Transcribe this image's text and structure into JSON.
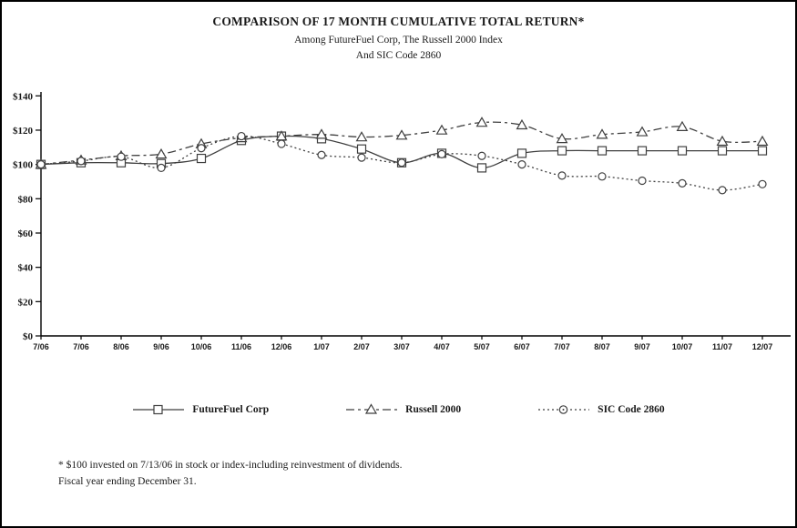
{
  "page": {
    "title": "COMPARISON OF 17 MONTH CUMULATIVE TOTAL RETURN*",
    "subtitle_line1": "Among FutureFuel Corp, The Russell 2000 Index",
    "subtitle_line2": "And SIC Code 2860",
    "footnote_line1": "* $100 invested on 7/13/06 in stock or index-including reinvestment of dividends.",
    "footnote_line2": "Fiscal year ending December 31."
  },
  "chart_data": {
    "type": "line",
    "title": "COMPARISON OF 17 MONTH CUMULATIVE TOTAL RETURN*",
    "subtitle": "Among FutureFuel Corp, The Russell 2000 Index And SIC Code 2860",
    "categories": [
      "7/06",
      "7/06",
      "8/06",
      "9/06",
      "10/06",
      "11/06",
      "12/06",
      "1/07",
      "2/07",
      "3/07",
      "4/07",
      "5/07",
      "6/07",
      "7/07",
      "8/07",
      "9/07",
      "10/07",
      "11/07",
      "12/07"
    ],
    "series": [
      {
        "name": "FutureFuel Corp",
        "marker": "square",
        "line_style": "solid",
        "values": [
          100,
          101,
          101,
          100.5,
          103.5,
          114,
          116.5,
          115,
          109,
          101,
          106.5,
          98,
          106.5,
          108,
          108,
          108,
          108,
          108,
          108
        ]
      },
      {
        "name": "Russell 2000",
        "marker": "triangle",
        "line_style": "dashed",
        "values": [
          100,
          102.5,
          105,
          106,
          112,
          115.5,
          116.5,
          117.5,
          116,
          117,
          120,
          124.5,
          123,
          115,
          117.5,
          119,
          122,
          113.5,
          113.5
        ]
      },
      {
        "name": "SIC Code 2860",
        "marker": "circle",
        "line_style": "dotted",
        "values": [
          100,
          102,
          104.5,
          98,
          109.5,
          116.5,
          112,
          105.5,
          104,
          101,
          106,
          105,
          100,
          93.5,
          93,
          90.5,
          89,
          85,
          88.5
        ]
      }
    ],
    "xlabel": "",
    "ylabel": "",
    "ylim": [
      0,
      140
    ],
    "ytick_step": 20,
    "ytick_labels": [
      "$0",
      "$20",
      "$40",
      "$60",
      "$80",
      "$100",
      "$120",
      "$140"
    ],
    "grid": false,
    "legend_position": "bottom",
    "line_color": "#3f3f3f"
  }
}
